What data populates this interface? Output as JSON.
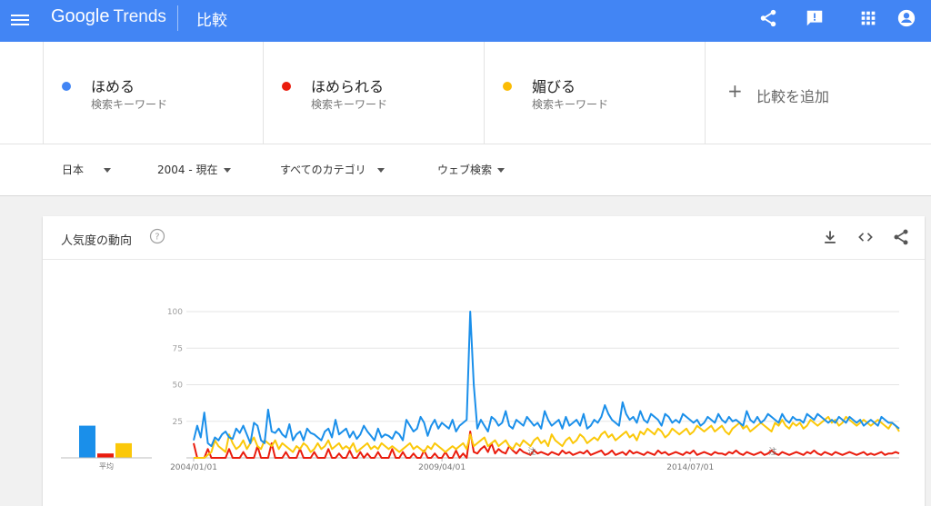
{
  "header": {
    "logo_main": "Google",
    "logo_sub": "Trends",
    "page_title": "比較",
    "icons": [
      "menu-icon",
      "share-icon",
      "feedback-icon",
      "apps-icon",
      "account-icon"
    ]
  },
  "terms": [
    {
      "name": "ほめる",
      "kind": "検索キーワード",
      "color": "#4285f4"
    },
    {
      "name": "ほめられる",
      "kind": "検索キーワード",
      "color": "#ea1c0d"
    },
    {
      "name": "媚びる",
      "kind": "検索キーワード",
      "color": "#fbbc05"
    }
  ],
  "add_compare": {
    "label": "比較を追加"
  },
  "filters": {
    "region": "日本",
    "period": "2004 - 現在",
    "category": "すべてのカテゴリ",
    "search_type": "ウェブ検索"
  },
  "card": {
    "title": "人気度の動向",
    "icons": [
      "help-icon",
      "download-icon",
      "embed-icon",
      "share-icon"
    ]
  },
  "chart_data": {
    "type": "line",
    "x_start": "2004-01",
    "x_end": "2018-12",
    "x_ticks": [
      "2004/01/01",
      "2009/04/01",
      "2014/07/01"
    ],
    "ylim": [
      0,
      100
    ],
    "y_ticks": [
      "100",
      "75",
      "50",
      "25"
    ],
    "grid": true,
    "annotations": [
      "注",
      "注"
    ],
    "average_label": "平均",
    "averages": [
      22,
      3,
      10
    ],
    "series": [
      {
        "color": "#1a8fea",
        "values": [
          12,
          22,
          14,
          31,
          10,
          8,
          14,
          12,
          16,
          18,
          14,
          13,
          20,
          17,
          22,
          16,
          10,
          24,
          22,
          12,
          10,
          33,
          18,
          17,
          20,
          16,
          14,
          23,
          12,
          16,
          18,
          12,
          20,
          17,
          16,
          14,
          12,
          18,
          20,
          14,
          26,
          16,
          18,
          20,
          14,
          18,
          13,
          16,
          22,
          18,
          15,
          12,
          20,
          14,
          16,
          15,
          13,
          18,
          16,
          12,
          26,
          22,
          18,
          20,
          28,
          24,
          15,
          22,
          26,
          20,
          24,
          22,
          20,
          26,
          18,
          22,
          24,
          26,
          100,
          50,
          20,
          26,
          22,
          18,
          28,
          26,
          22,
          24,
          32,
          22,
          20,
          26,
          24,
          22,
          28,
          25,
          22,
          24,
          20,
          32,
          26,
          22,
          24,
          26,
          20,
          28,
          22,
          24,
          26,
          22,
          30,
          20,
          22,
          26,
          24,
          28,
          36,
          30,
          26,
          24,
          22,
          38,
          30,
          26,
          28,
          24,
          32,
          26,
          24,
          30,
          28,
          26,
          22,
          30,
          28,
          24,
          26,
          24,
          30,
          28,
          26,
          24,
          26,
          22,
          24,
          28,
          26,
          24,
          30,
          26,
          24,
          28,
          25,
          26,
          24,
          22,
          32,
          26,
          24,
          28,
          24,
          26,
          30,
          28,
          26,
          24,
          30,
          26,
          24,
          28,
          26,
          26,
          24,
          30,
          28,
          26,
          30,
          28,
          26,
          24,
          26,
          24,
          28,
          26,
          24,
          28,
          26,
          24,
          26,
          22,
          24,
          26,
          24,
          22,
          28,
          26,
          24,
          24,
          22,
          20
        ]
      },
      {
        "color": "#ea1c0d",
        "values": [
          10,
          0,
          0,
          0,
          6,
          0,
          0,
          0,
          0,
          0,
          6,
          0,
          0,
          0,
          4,
          0,
          0,
          0,
          8,
          0,
          0,
          0,
          10,
          0,
          0,
          0,
          4,
          0,
          0,
          0,
          6,
          0,
          0,
          0,
          4,
          0,
          0,
          0,
          6,
          0,
          0,
          3,
          0,
          0,
          5,
          0,
          0,
          4,
          0,
          3,
          0,
          0,
          4,
          0,
          0,
          0,
          6,
          0,
          0,
          4,
          0,
          0,
          3,
          0,
          0,
          5,
          0,
          0,
          3,
          0,
          0,
          4,
          0,
          0,
          5,
          0,
          3,
          0,
          18,
          4,
          3,
          6,
          8,
          4,
          10,
          3,
          6,
          4,
          3,
          8,
          5,
          3,
          6,
          4,
          3,
          2,
          5,
          3,
          4,
          3,
          2,
          4,
          3,
          2,
          5,
          3,
          4,
          2,
          3,
          4,
          3,
          5,
          2,
          3,
          4,
          5,
          2,
          3,
          5,
          2,
          3,
          4,
          2,
          5,
          3,
          4,
          3,
          2,
          4,
          3,
          2,
          5,
          3,
          4,
          2,
          3,
          4,
          3,
          2,
          4,
          3,
          5,
          2,
          3,
          4,
          3,
          2,
          4,
          3,
          3,
          2,
          4,
          3,
          5,
          3,
          2,
          4,
          3,
          2,
          3,
          4,
          2,
          3,
          5,
          3,
          2,
          4,
          3,
          2,
          3,
          4,
          3,
          2,
          4,
          3,
          5,
          3,
          2,
          4,
          3,
          2,
          4,
          3,
          2,
          3,
          4,
          3,
          2,
          3,
          4,
          2,
          3,
          2,
          3,
          4,
          2,
          3,
          3,
          4,
          3
        ]
      },
      {
        "color": "#fbc809",
        "values": [
          0,
          0,
          0,
          0,
          2,
          4,
          12,
          8,
          6,
          4,
          16,
          10,
          6,
          8,
          12,
          6,
          10,
          14,
          8,
          6,
          12,
          10,
          8,
          12,
          6,
          10,
          8,
          6,
          4,
          8,
          6,
          10,
          8,
          4,
          6,
          10,
          6,
          8,
          12,
          6,
          8,
          10,
          6,
          8,
          6,
          10,
          4,
          6,
          8,
          10,
          6,
          8,
          6,
          10,
          8,
          6,
          8,
          6,
          4,
          6,
          8,
          10,
          6,
          8,
          6,
          4,
          8,
          6,
          10,
          8,
          6,
          4,
          6,
          8,
          6,
          8,
          10,
          6,
          16,
          8,
          10,
          12,
          14,
          8,
          10,
          12,
          8,
          10,
          12,
          8,
          6,
          10,
          8,
          12,
          10,
          8,
          12,
          14,
          10,
          12,
          8,
          16,
          12,
          10,
          8,
          12,
          14,
          10,
          12,
          16,
          14,
          10,
          12,
          14,
          12,
          16,
          18,
          14,
          16,
          12,
          14,
          16,
          18,
          14,
          16,
          12,
          18,
          16,
          20,
          18,
          16,
          20,
          18,
          14,
          16,
          20,
          18,
          16,
          18,
          20,
          16,
          18,
          22,
          20,
          18,
          20,
          22,
          18,
          20,
          22,
          18,
          16,
          20,
          22,
          24,
          20,
          22,
          18,
          20,
          22,
          24,
          22,
          20,
          18,
          24,
          22,
          26,
          22,
          20,
          24,
          22,
          24,
          20,
          22,
          26,
          24,
          22,
          24,
          26,
          28,
          24,
          26,
          22,
          24,
          28,
          26,
          24,
          22,
          24,
          26,
          24,
          22,
          24,
          26,
          24,
          22,
          20,
          24,
          22,
          18
        ]
      }
    ]
  }
}
